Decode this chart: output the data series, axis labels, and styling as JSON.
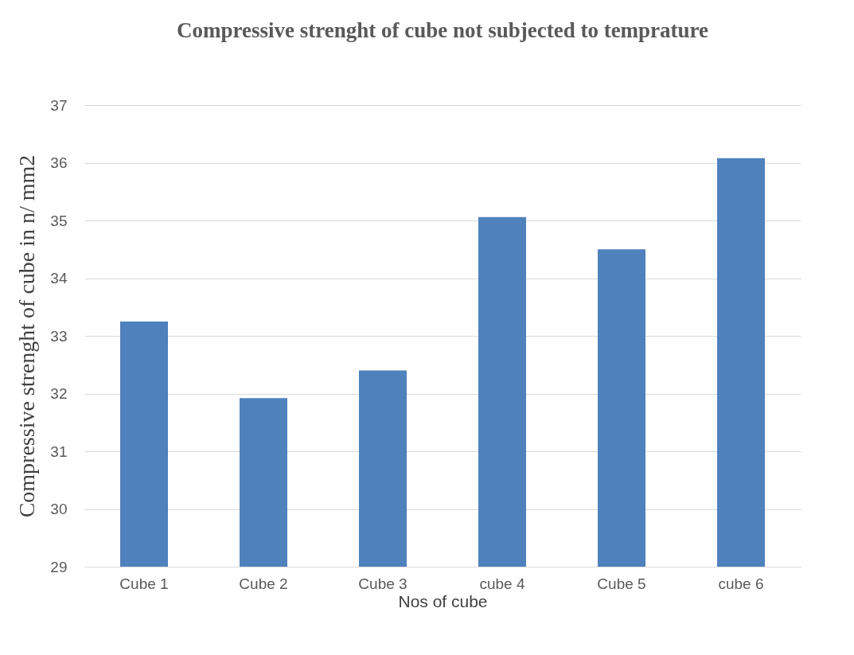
{
  "chart_data": {
    "type": "bar",
    "title": "Compressive strenght of cube not subjected to temprature",
    "xlabel": "Nos of cube",
    "ylabel": "Compressive strenght of cube  in n/ mm2",
    "categories": [
      "Cube 1",
      "Cube 2",
      "Cube 3",
      "cube 4",
      "Cube 5",
      "cube 6"
    ],
    "values": [
      33.25,
      31.92,
      32.4,
      35.06,
      34.5,
      36.08
    ],
    "color": "#4f81bd",
    "ylim": [
      29,
      37
    ],
    "yticks": [
      29,
      30,
      31,
      32,
      33,
      34,
      35,
      36,
      37
    ],
    "grid": "y"
  }
}
